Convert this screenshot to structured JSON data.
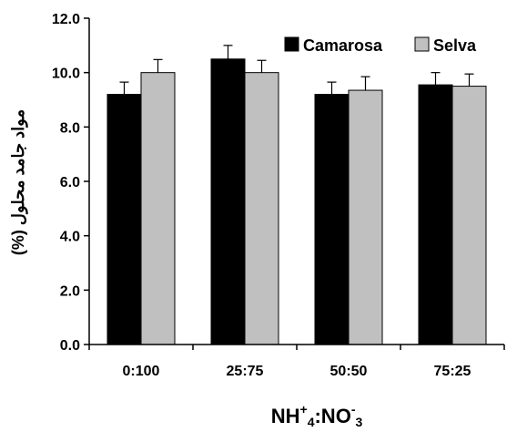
{
  "chart_data": {
    "type": "bar",
    "categories": [
      "0:100",
      "25:75",
      "50:50",
      "75:25"
    ],
    "series": [
      {
        "name": "Camarosa",
        "values": [
          9.2,
          10.5,
          9.2,
          9.55
        ],
        "errors": [
          0.45,
          0.5,
          0.45,
          0.45
        ],
        "color": "#000000"
      },
      {
        "name": "Selva",
        "values": [
          10.0,
          10.0,
          9.35,
          9.5
        ],
        "errors": [
          0.48,
          0.45,
          0.5,
          0.45
        ],
        "color": "#c0c0c0"
      }
    ],
    "ylim": [
      0,
      12
    ],
    "ytick_labels": [
      "0.0",
      "2.0",
      "4.0",
      "6.0",
      "8.0",
      "10.0",
      "12.0"
    ],
    "ylabel": "مواد جامد محلول (%)",
    "xlabel": {
      "base1": "NH",
      "sup1": "+",
      "sub1": "4",
      "sep": ":NO",
      "sup2": "-",
      "sub2": "3"
    },
    "legend_position": "top-right",
    "grid": false
  }
}
